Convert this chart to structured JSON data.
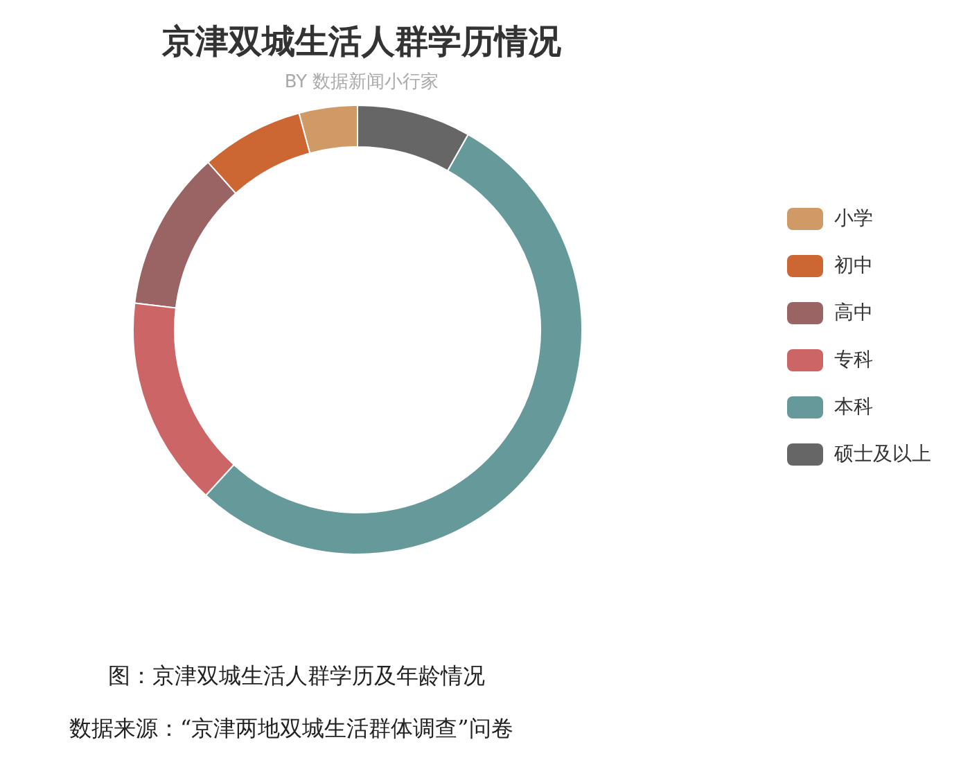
{
  "chart_data": {
    "type": "donut",
    "title": "京津双城生活人群学历情况",
    "subtitle": "BY 数据新闻小行家",
    "categories": [
      "小学",
      "初中",
      "高中",
      "专科",
      "本科",
      "硕士及以上"
    ],
    "values": [
      4.2,
      7.4,
      11.5,
      15.1,
      53.6,
      8.2
    ],
    "colors": [
      "#d09a67",
      "#cc6633",
      "#9b6464",
      "#cc6666",
      "#669999",
      "#666666"
    ],
    "legend": "right",
    "annotations": [
      "图：京津双城生活人群学历及年龄情况",
      "数据来源：“京津两地双城生活群体调查”问卷"
    ]
  }
}
